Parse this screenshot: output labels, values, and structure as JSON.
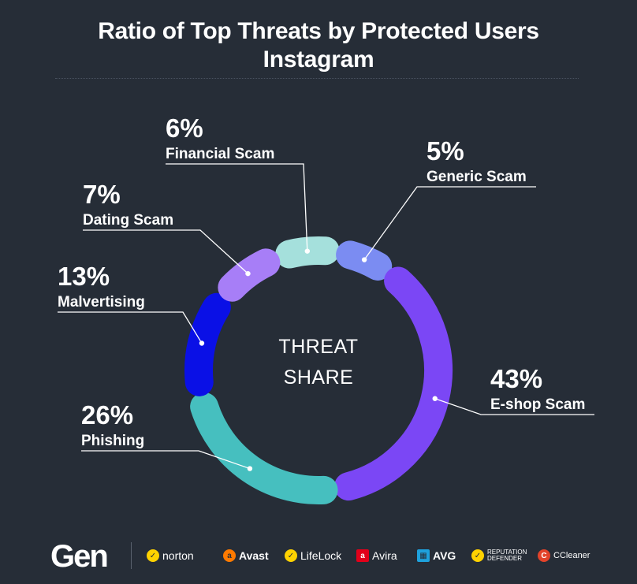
{
  "title_line1": "Ratio of Top Threats by Protected Users",
  "title_line2": "Instagram",
  "chart_data": {
    "type": "pie",
    "variant": "donut",
    "title": "Ratio of Top Threats by Protected Users — Instagram",
    "center_label": [
      "THREAT",
      "SHARE"
    ],
    "slices": [
      {
        "label": "Financial Scam",
        "value": 6,
        "display": "6%",
        "color": "#a5e0dc"
      },
      {
        "label": "Generic Scam",
        "value": 5,
        "display": "5%",
        "color": "#7b8cf2"
      },
      {
        "label": "E-shop Scam",
        "value": 43,
        "display": "43%",
        "color": "#7b47f5"
      },
      {
        "label": "Phishing",
        "value": 26,
        "display": "26%",
        "color": "#46bfbf"
      },
      {
        "label": "Malvertising",
        "value": 13,
        "display": "13%",
        "color": "#0a10e6"
      },
      {
        "label": "Dating Scam",
        "value": 7,
        "display": "7%",
        "color": "#a77ef7"
      }
    ]
  },
  "footer": {
    "company": "Gen",
    "brands": [
      {
        "name": "norton",
        "icon": "check-circle-icon",
        "color": "#ffd200"
      },
      {
        "name": "Avast",
        "icon": "avast-icon",
        "color": "#ff7a00"
      },
      {
        "name": "LifeLock",
        "icon": "check-circle-icon",
        "color": "#ffd200"
      },
      {
        "name": "Avira",
        "icon": "avira-icon",
        "color": "#e2001a"
      },
      {
        "name": "AVG",
        "icon": "avg-icon",
        "color": "#1ea1dc"
      },
      {
        "name": "REPUTATION DEFENDER",
        "icon": "check-circle-icon",
        "color": "#ffd200"
      },
      {
        "name": "CCleaner",
        "icon": "ccleaner-icon",
        "color": "#e2432a"
      }
    ]
  }
}
